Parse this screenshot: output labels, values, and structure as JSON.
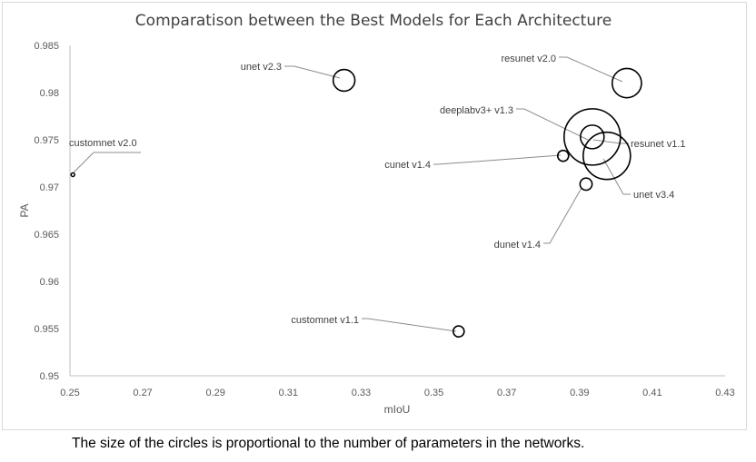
{
  "caption": "The size of the circles is proportional to the number of parameters in the networks.",
  "colors": {
    "marker": "#000000",
    "leader": "#8c8c8c",
    "axis": "#bfbfbf",
    "text": "#595959",
    "title": "#404040"
  },
  "chart_data": {
    "type": "scatter",
    "title": "Comparatison between the Best Models for Each Architecture",
    "xlabel": "mIoU",
    "ylabel": "PA",
    "xlim": [
      0.25,
      0.43
    ],
    "ylim": [
      0.95,
      0.985
    ],
    "x_ticks": [
      "0.25",
      "0.27",
      "0.29",
      "0.31",
      "0.33",
      "0.35",
      "0.37",
      "0.39",
      "0.41",
      "0.43"
    ],
    "y_ticks": [
      "0.95",
      "0.955",
      "0.96",
      "0.965",
      "0.97",
      "0.975",
      "0.98",
      "0.985"
    ],
    "grid": false,
    "legend": "none",
    "points": [
      {
        "label": "customnet v2.0",
        "x": 0.2508,
        "y": 0.9713,
        "size": 1
      },
      {
        "label": "unet v2.3",
        "x": 0.3253,
        "y": 0.9813,
        "size": 55
      },
      {
        "label": "resunet v2.0",
        "x": 0.403,
        "y": 0.981,
        "size": 100
      },
      {
        "label": "deeplabv3+ v1.3",
        "x": 0.3935,
        "y": 0.9753,
        "size": 370
      },
      {
        "label": "resunet v1.1",
        "x": 0.3935,
        "y": 0.9753,
        "size": 65
      },
      {
        "label": "unet v3.4",
        "x": 0.3975,
        "y": 0.9733,
        "size": 260
      },
      {
        "label": "cunet v1.4",
        "x": 0.3855,
        "y": 0.9733,
        "size": 14
      },
      {
        "label": "dunet v1.4",
        "x": 0.3918,
        "y": 0.9703,
        "size": 17
      },
      {
        "label": "customnet v1.1",
        "x": 0.3568,
        "y": 0.9547,
        "size": 14
      }
    ]
  }
}
